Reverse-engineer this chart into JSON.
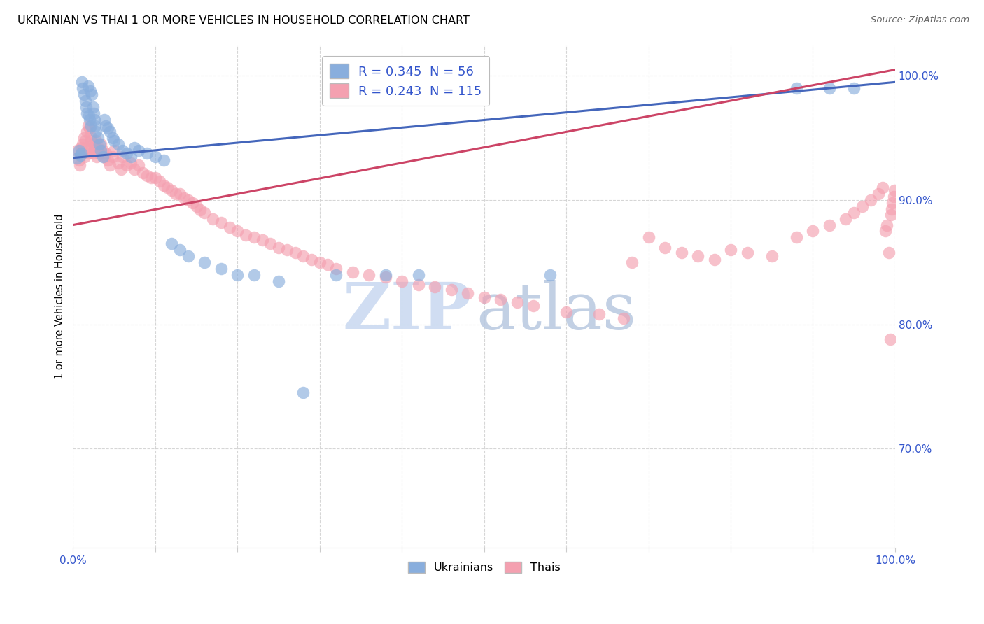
{
  "title": "UKRAINIAN VS THAI 1 OR MORE VEHICLES IN HOUSEHOLD CORRELATION CHART",
  "source": "Source: ZipAtlas.com",
  "ylabel": "1 or more Vehicles in Household",
  "ytick_labels": [
    "100.0%",
    "90.0%",
    "80.0%",
    "70.0%"
  ],
  "ytick_positions": [
    1.0,
    0.9,
    0.8,
    0.7
  ],
  "xlim": [
    0.0,
    1.0
  ],
  "ylim": [
    0.62,
    1.025
  ],
  "legend_blue_label": "R = 0.345  N = 56",
  "legend_pink_label": "R = 0.243  N = 115",
  "watermark_zip": "ZIP",
  "watermark_atlas": "atlas",
  "blue_color": "#89AEDD",
  "pink_color": "#F4A0B0",
  "blue_line_color": "#4466BB",
  "pink_line_color": "#CC4466",
  "legend_text_color": "#3355CC",
  "tick_color": "#3355CC",
  "grid_color": "#CCCCCC",
  "blue_x": [
    0.005,
    0.007,
    0.009,
    0.01,
    0.011,
    0.012,
    0.013,
    0.015,
    0.016,
    0.017,
    0.018,
    0.019,
    0.02,
    0.021,
    0.022,
    0.023,
    0.024,
    0.025,
    0.026,
    0.027,
    0.028,
    0.03,
    0.032,
    0.034,
    0.036,
    0.038,
    0.04,
    0.042,
    0.045,
    0.048,
    0.05,
    0.055,
    0.06,
    0.065,
    0.07,
    0.075,
    0.08,
    0.09,
    0.1,
    0.11,
    0.12,
    0.13,
    0.14,
    0.16,
    0.18,
    0.2,
    0.22,
    0.25,
    0.28,
    0.32,
    0.38,
    0.42,
    0.58,
    0.88,
    0.92,
    0.95
  ],
  "blue_y": [
    0.934,
    0.94,
    0.936,
    0.938,
    0.995,
    0.99,
    0.985,
    0.98,
    0.975,
    0.97,
    0.992,
    0.968,
    0.965,
    0.988,
    0.96,
    0.985,
    0.975,
    0.97,
    0.965,
    0.96,
    0.955,
    0.95,
    0.945,
    0.94,
    0.935,
    0.965,
    0.96,
    0.958,
    0.955,
    0.95,
    0.948,
    0.945,
    0.94,
    0.938,
    0.935,
    0.942,
    0.94,
    0.938,
    0.935,
    0.932,
    0.865,
    0.86,
    0.855,
    0.85,
    0.845,
    0.84,
    0.84,
    0.835,
    0.745,
    0.84,
    0.84,
    0.84,
    0.84,
    0.99,
    0.99,
    0.99
  ],
  "pink_x": [
    0.005,
    0.007,
    0.008,
    0.009,
    0.01,
    0.011,
    0.012,
    0.013,
    0.014,
    0.015,
    0.016,
    0.017,
    0.018,
    0.019,
    0.02,
    0.021,
    0.022,
    0.023,
    0.024,
    0.025,
    0.026,
    0.027,
    0.028,
    0.029,
    0.03,
    0.032,
    0.034,
    0.036,
    0.038,
    0.04,
    0.042,
    0.045,
    0.048,
    0.05,
    0.055,
    0.058,
    0.06,
    0.065,
    0.07,
    0.075,
    0.08,
    0.085,
    0.09,
    0.095,
    0.1,
    0.105,
    0.11,
    0.115,
    0.12,
    0.125,
    0.13,
    0.135,
    0.14,
    0.145,
    0.15,
    0.155,
    0.16,
    0.17,
    0.18,
    0.19,
    0.2,
    0.21,
    0.22,
    0.23,
    0.24,
    0.25,
    0.26,
    0.27,
    0.28,
    0.29,
    0.3,
    0.31,
    0.32,
    0.34,
    0.36,
    0.38,
    0.4,
    0.42,
    0.44,
    0.46,
    0.48,
    0.5,
    0.52,
    0.54,
    0.56,
    0.6,
    0.64,
    0.67,
    0.68,
    0.7,
    0.72,
    0.74,
    0.76,
    0.78,
    0.8,
    0.82,
    0.85,
    0.88,
    0.9,
    0.92,
    0.94,
    0.95,
    0.96,
    0.97,
    0.98,
    0.985,
    0.988,
    0.99,
    0.992,
    0.994,
    0.995,
    0.996,
    0.997,
    0.998,
    0.999
  ],
  "pink_y": [
    0.94,
    0.932,
    0.928,
    0.936,
    0.942,
    0.938,
    0.945,
    0.95,
    0.935,
    0.948,
    0.942,
    0.955,
    0.96,
    0.938,
    0.958,
    0.952,
    0.948,
    0.942,
    0.938,
    0.945,
    0.942,
    0.94,
    0.948,
    0.935,
    0.942,
    0.938,
    0.945,
    0.94,
    0.935,
    0.938,
    0.932,
    0.928,
    0.935,
    0.94,
    0.93,
    0.925,
    0.935,
    0.928,
    0.93,
    0.925,
    0.928,
    0.922,
    0.92,
    0.918,
    0.918,
    0.915,
    0.912,
    0.91,
    0.908,
    0.905,
    0.905,
    0.902,
    0.9,
    0.898,
    0.895,
    0.892,
    0.89,
    0.885,
    0.882,
    0.878,
    0.875,
    0.872,
    0.87,
    0.868,
    0.865,
    0.862,
    0.86,
    0.858,
    0.855,
    0.852,
    0.85,
    0.848,
    0.845,
    0.842,
    0.84,
    0.838,
    0.835,
    0.832,
    0.83,
    0.828,
    0.825,
    0.822,
    0.82,
    0.818,
    0.815,
    0.81,
    0.808,
    0.805,
    0.85,
    0.87,
    0.862,
    0.858,
    0.855,
    0.852,
    0.86,
    0.858,
    0.855,
    0.87,
    0.875,
    0.88,
    0.885,
    0.89,
    0.895,
    0.9,
    0.905,
    0.91,
    0.875,
    0.88,
    0.858,
    0.788,
    0.888,
    0.893,
    0.898,
    0.903,
    0.908
  ],
  "blue_line_x0": 0.0,
  "blue_line_x1": 1.0,
  "blue_line_y0": 0.934,
  "blue_line_y1": 0.995,
  "pink_line_x0": 0.0,
  "pink_line_x1": 1.0,
  "pink_line_y0": 0.88,
  "pink_line_y1": 1.005
}
